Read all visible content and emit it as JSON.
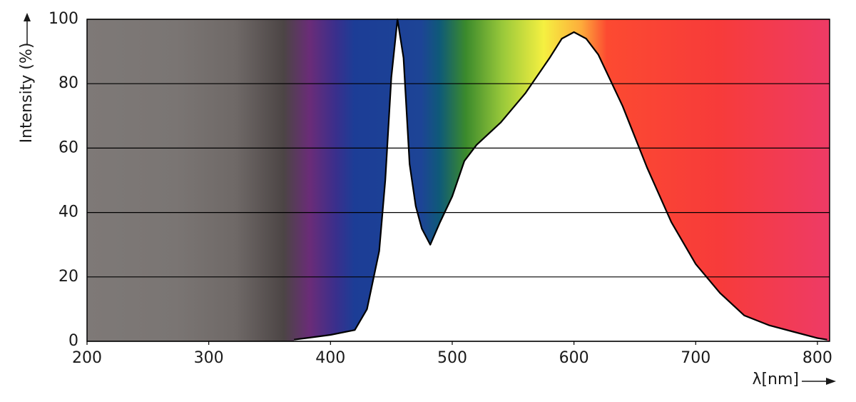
{
  "chart_data": {
    "type": "area",
    "x_label": "λ[nm]",
    "y_label": "Intensity (%)",
    "x": [
      370,
      380,
      400,
      420,
      430,
      440,
      445,
      450,
      455,
      460,
      465,
      470,
      475,
      482,
      490,
      500,
      510,
      520,
      540,
      560,
      580,
      590,
      600,
      610,
      620,
      640,
      660,
      680,
      700,
      720,
      740,
      760,
      780,
      800,
      808
    ],
    "series": [
      {
        "color": "#000000",
        "fill": "#ffffff",
        "values": [
          0.5,
          1,
          2,
          3.5,
          10,
          28,
          50,
          82,
          100,
          88,
          55,
          42,
          35,
          30,
          37,
          45,
          56,
          61,
          68,
          77,
          88,
          94,
          96,
          94,
          89,
          73,
          54,
          37,
          24,
          15,
          8,
          5,
          3,
          1,
          0.5
        ]
      }
    ],
    "xlim": [
      200,
      810
    ],
    "ylim": [
      0,
      100
    ],
    "xticks": [
      200,
      300,
      400,
      500,
      600,
      700,
      800
    ],
    "yticks": [
      0,
      20,
      40,
      60,
      80,
      100
    ],
    "grid": true
  }
}
